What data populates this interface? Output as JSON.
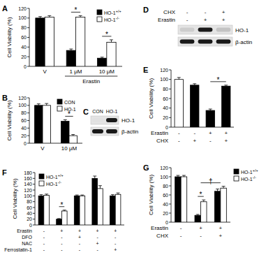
{
  "chart_data": [
    {
      "type": "bar",
      "panel": "A",
      "ylabel": "Cell Viability (%)",
      "categories": [
        "V",
        "1 μM",
        "10 μM"
      ],
      "category_group": {
        "label": "Erastin",
        "categories": [
          1,
          2
        ]
      },
      "ylim": [
        0,
        120
      ],
      "yticks": [
        0,
        20,
        40,
        60,
        80,
        100,
        120
      ],
      "legend": "upper right",
      "series": [
        {
          "name": "HO-1+/+",
          "color": "#000000",
          "values": [
            100,
            33,
            17
          ],
          "errors": [
            3,
            3,
            2
          ]
        },
        {
          "name": "HO-1-/-",
          "color": "#ffffff",
          "values": [
            102,
            102,
            50
          ],
          "errors": [
            3,
            3,
            5
          ]
        }
      ],
      "annotations": [
        {
          "text": "*",
          "categories": [
            1
          ]
        },
        {
          "text": "*",
          "categories": [
            2
          ]
        }
      ]
    },
    {
      "type": "bar",
      "panel": "B",
      "ylabel": "Cell Viability (%)",
      "categories": [
        "V",
        "10 μM"
      ],
      "ylim": [
        0,
        120
      ],
      "yticks": [
        0,
        20,
        40,
        60,
        80,
        100,
        120
      ],
      "legend": "upper right",
      "series": [
        {
          "name": "CON",
          "color": "#000000",
          "values": [
            100,
            58
          ],
          "errors": [
            4,
            4
          ]
        },
        {
          "name": "HO-1",
          "color": "#ffffff",
          "values": [
            100,
            20
          ],
          "errors": [
            5,
            3
          ]
        }
      ],
      "annotations": [
        {
          "text": "*",
          "categories": [
            1
          ]
        }
      ]
    },
    {
      "type": "blot",
      "panel": "C",
      "lanes": [
        "CON",
        "HO-1"
      ],
      "bands": [
        "HO-1",
        "β-actin"
      ],
      "intensity": [
        [
          0,
          1
        ],
        [
          1,
          1
        ]
      ]
    },
    {
      "type": "blot",
      "panel": "D",
      "conditions": [
        {
          "label": "CHX",
          "signs": [
            "-",
            "-",
            "+"
          ]
        },
        {
          "label": "Erastin",
          "signs": [
            "-",
            "+",
            "+"
          ]
        }
      ],
      "bands": [
        "HO-1",
        "β-actin"
      ],
      "intensity": [
        [
          0.1,
          1,
          0.15
        ],
        [
          1,
          1,
          1
        ]
      ]
    },
    {
      "type": "bar",
      "panel": "E",
      "ylabel": "Cell Viability (%)",
      "categories": [
        null,
        null,
        null,
        null
      ],
      "conditions": [
        {
          "label": "Erastin",
          "signs": [
            "-",
            "-",
            "+",
            "+"
          ]
        },
        {
          "label": "CHX",
          "signs": [
            "-",
            "+",
            "-",
            "+"
          ]
        }
      ],
      "values": [
        100,
        88,
        35,
        86
      ],
      "errors": [
        4,
        3,
        3,
        2
      ],
      "colors": [
        "#ffffff",
        "#000000",
        "#000000",
        "#000000"
      ],
      "ylim": [
        0,
        120
      ],
      "yticks": [
        0,
        20,
        40,
        60,
        80,
        100,
        120
      ],
      "annotations": [
        {
          "text": "*",
          "categories": [
            2,
            3
          ]
        }
      ]
    },
    {
      "type": "bar",
      "panel": "F",
      "ylabel": "Cell Viability (%)",
      "categories": [
        null,
        null,
        null,
        null,
        null
      ],
      "conditions": [
        {
          "label": "Erastin",
          "signs": [
            "-",
            "+",
            "+",
            "+",
            "+"
          ]
        },
        {
          "label": "DFO",
          "signs": [
            "-",
            "-",
            "+",
            "-",
            "-"
          ]
        },
        {
          "label": "NAC",
          "signs": [
            "-",
            "-",
            "-",
            "+",
            "-"
          ]
        },
        {
          "label": "Ferrostatin-1",
          "signs": [
            "-",
            "-",
            "-",
            "-",
            "+"
          ]
        }
      ],
      "ylim": [
        0,
        180
      ],
      "yticks": [
        0,
        20,
        40,
        60,
        80,
        100,
        120,
        140,
        160,
        180
      ],
      "legend": "upper left",
      "series": [
        {
          "name": "HO-1+/+",
          "color": "#000000",
          "values": [
            100,
            20,
            100,
            160,
            100
          ],
          "errors": [
            4,
            2,
            3,
            8,
            4
          ]
        },
        {
          "name": "HO-1-/-",
          "color": "#ffffff",
          "values": [
            102,
            48,
            100,
            125,
            105
          ],
          "errors": [
            4,
            3,
            3,
            10,
            5
          ]
        }
      ],
      "annotations": [
        {
          "text": "*",
          "categories": [
            1
          ]
        }
      ]
    },
    {
      "type": "bar",
      "panel": "G",
      "ylabel": "Cell Viability (%)",
      "categories": [
        null,
        null,
        null
      ],
      "conditions": [
        {
          "label": "Erastin",
          "signs": [
            "-",
            "+",
            "+"
          ]
        },
        {
          "label": "CHX",
          "signs": [
            "-",
            "-",
            "+"
          ]
        }
      ],
      "ylim": [
        0,
        120
      ],
      "yticks": [
        0,
        20,
        40,
        60,
        80,
        100,
        120
      ],
      "legend": "right",
      "series": [
        {
          "name": "HO-1+/+",
          "color": "#000000",
          "values": [
            100,
            15,
            68
          ],
          "errors": [
            3,
            2,
            5
          ]
        },
        {
          "name": "HO-1-/-",
          "color": "#ffffff",
          "values": [
            100,
            45,
            75
          ],
          "errors": [
            3,
            4,
            4
          ]
        }
      ],
      "annotations": [
        {
          "text": "*",
          "categories": [
            1
          ]
        },
        {
          "text": "†",
          "categories": [
            1,
            2
          ]
        }
      ]
    }
  ]
}
